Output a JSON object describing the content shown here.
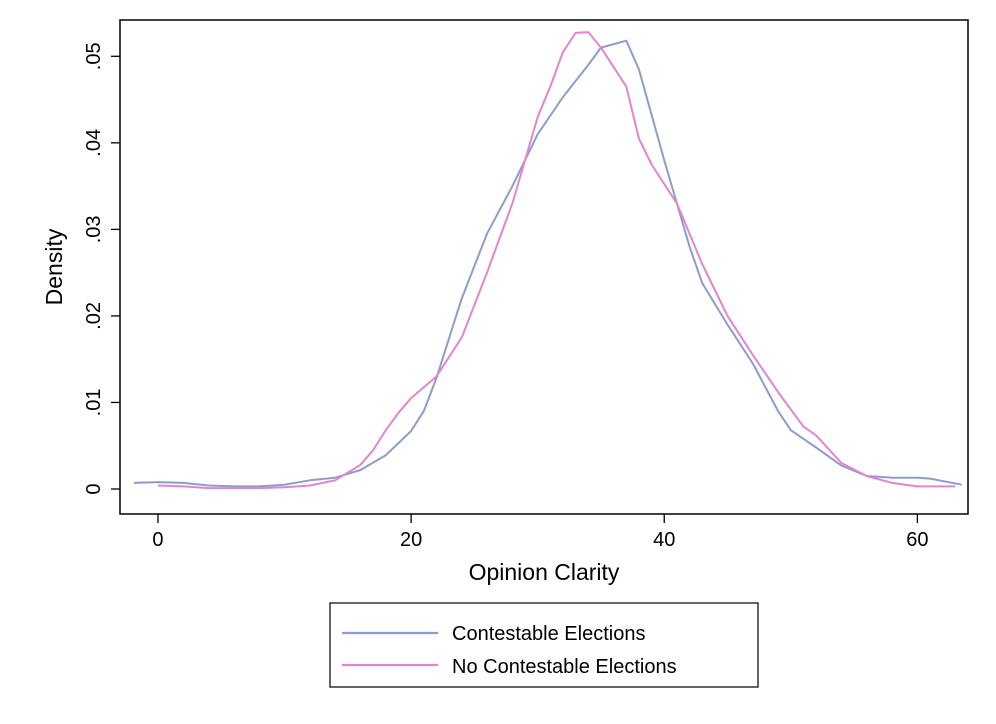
{
  "chart_data": {
    "type": "line",
    "title": "",
    "xlabel": "Opinion Clarity",
    "ylabel": "Density",
    "xlim": [
      -3,
      64
    ],
    "ylim": [
      0,
      0.0535
    ],
    "x_ticks": [
      0,
      20,
      40,
      60
    ],
    "x_tick_labels": [
      "0",
      "20",
      "40",
      "60"
    ],
    "y_ticks": [
      0,
      0.01,
      0.02,
      0.03,
      0.04,
      0.05
    ],
    "y_tick_labels": [
      "0",
      ".01",
      ".02",
      ".03",
      ".04",
      ".05"
    ],
    "grid": false,
    "legend_position": "bottom-center",
    "series": [
      {
        "name": "Contestable Elections",
        "color": "#8d9dc9",
        "points": [
          [
            -1.9,
            0.0007
          ],
          [
            0,
            0.0008
          ],
          [
            2,
            0.0007
          ],
          [
            4,
            0.0004
          ],
          [
            6,
            0.0003
          ],
          [
            8,
            0.0003
          ],
          [
            10,
            0.0005
          ],
          [
            12,
            0.001
          ],
          [
            14,
            0.0013
          ],
          [
            16,
            0.0022
          ],
          [
            18,
            0.0039
          ],
          [
            20,
            0.0067
          ],
          [
            21,
            0.009
          ],
          [
            22,
            0.0128
          ],
          [
            24,
            0.022
          ],
          [
            26,
            0.0295
          ],
          [
            28,
            0.035
          ],
          [
            30,
            0.041
          ],
          [
            32,
            0.0453
          ],
          [
            34,
            0.049
          ],
          [
            35,
            0.051
          ],
          [
            37,
            0.0518
          ],
          [
            38,
            0.0485
          ],
          [
            40,
            0.038
          ],
          [
            42,
            0.028
          ],
          [
            43,
            0.0238
          ],
          [
            45,
            0.019
          ],
          [
            47,
            0.0145
          ],
          [
            49,
            0.009
          ],
          [
            50,
            0.0068
          ],
          [
            52,
            0.0048
          ],
          [
            54,
            0.0027
          ],
          [
            56,
            0.0015
          ],
          [
            58,
            0.0013
          ],
          [
            60,
            0.0013
          ],
          [
            61,
            0.0012
          ],
          [
            63.5,
            0.0005
          ]
        ]
      },
      {
        "name": "No Contestable Elections",
        "color": "#e285d1",
        "points": [
          [
            0,
            0.0004
          ],
          [
            2,
            0.0003
          ],
          [
            4,
            0.0001
          ],
          [
            6,
            0.0001
          ],
          [
            8,
            0.0001
          ],
          [
            10,
            0.0002
          ],
          [
            12,
            0.0004
          ],
          [
            14,
            0.001
          ],
          [
            16,
            0.0028
          ],
          [
            17,
            0.0045
          ],
          [
            18,
            0.0068
          ],
          [
            19,
            0.0088
          ],
          [
            20,
            0.0105
          ],
          [
            22,
            0.013
          ],
          [
            24,
            0.0175
          ],
          [
            26,
            0.025
          ],
          [
            28,
            0.033
          ],
          [
            30,
            0.043
          ],
          [
            31,
            0.0465
          ],
          [
            32,
            0.0505
          ],
          [
            33,
            0.0527
          ],
          [
            34,
            0.0528
          ],
          [
            35,
            0.051
          ],
          [
            37,
            0.0465
          ],
          [
            38,
            0.0405
          ],
          [
            39,
            0.0375
          ],
          [
            41,
            0.033
          ],
          [
            43,
            0.026
          ],
          [
            45,
            0.02
          ],
          [
            47,
            0.0155
          ],
          [
            49,
            0.0112
          ],
          [
            51,
            0.0072
          ],
          [
            52,
            0.0062
          ],
          [
            54,
            0.003
          ],
          [
            56,
            0.0015
          ],
          [
            58,
            0.0007
          ],
          [
            60,
            0.0003
          ],
          [
            63,
            0.0003
          ]
        ]
      }
    ]
  }
}
